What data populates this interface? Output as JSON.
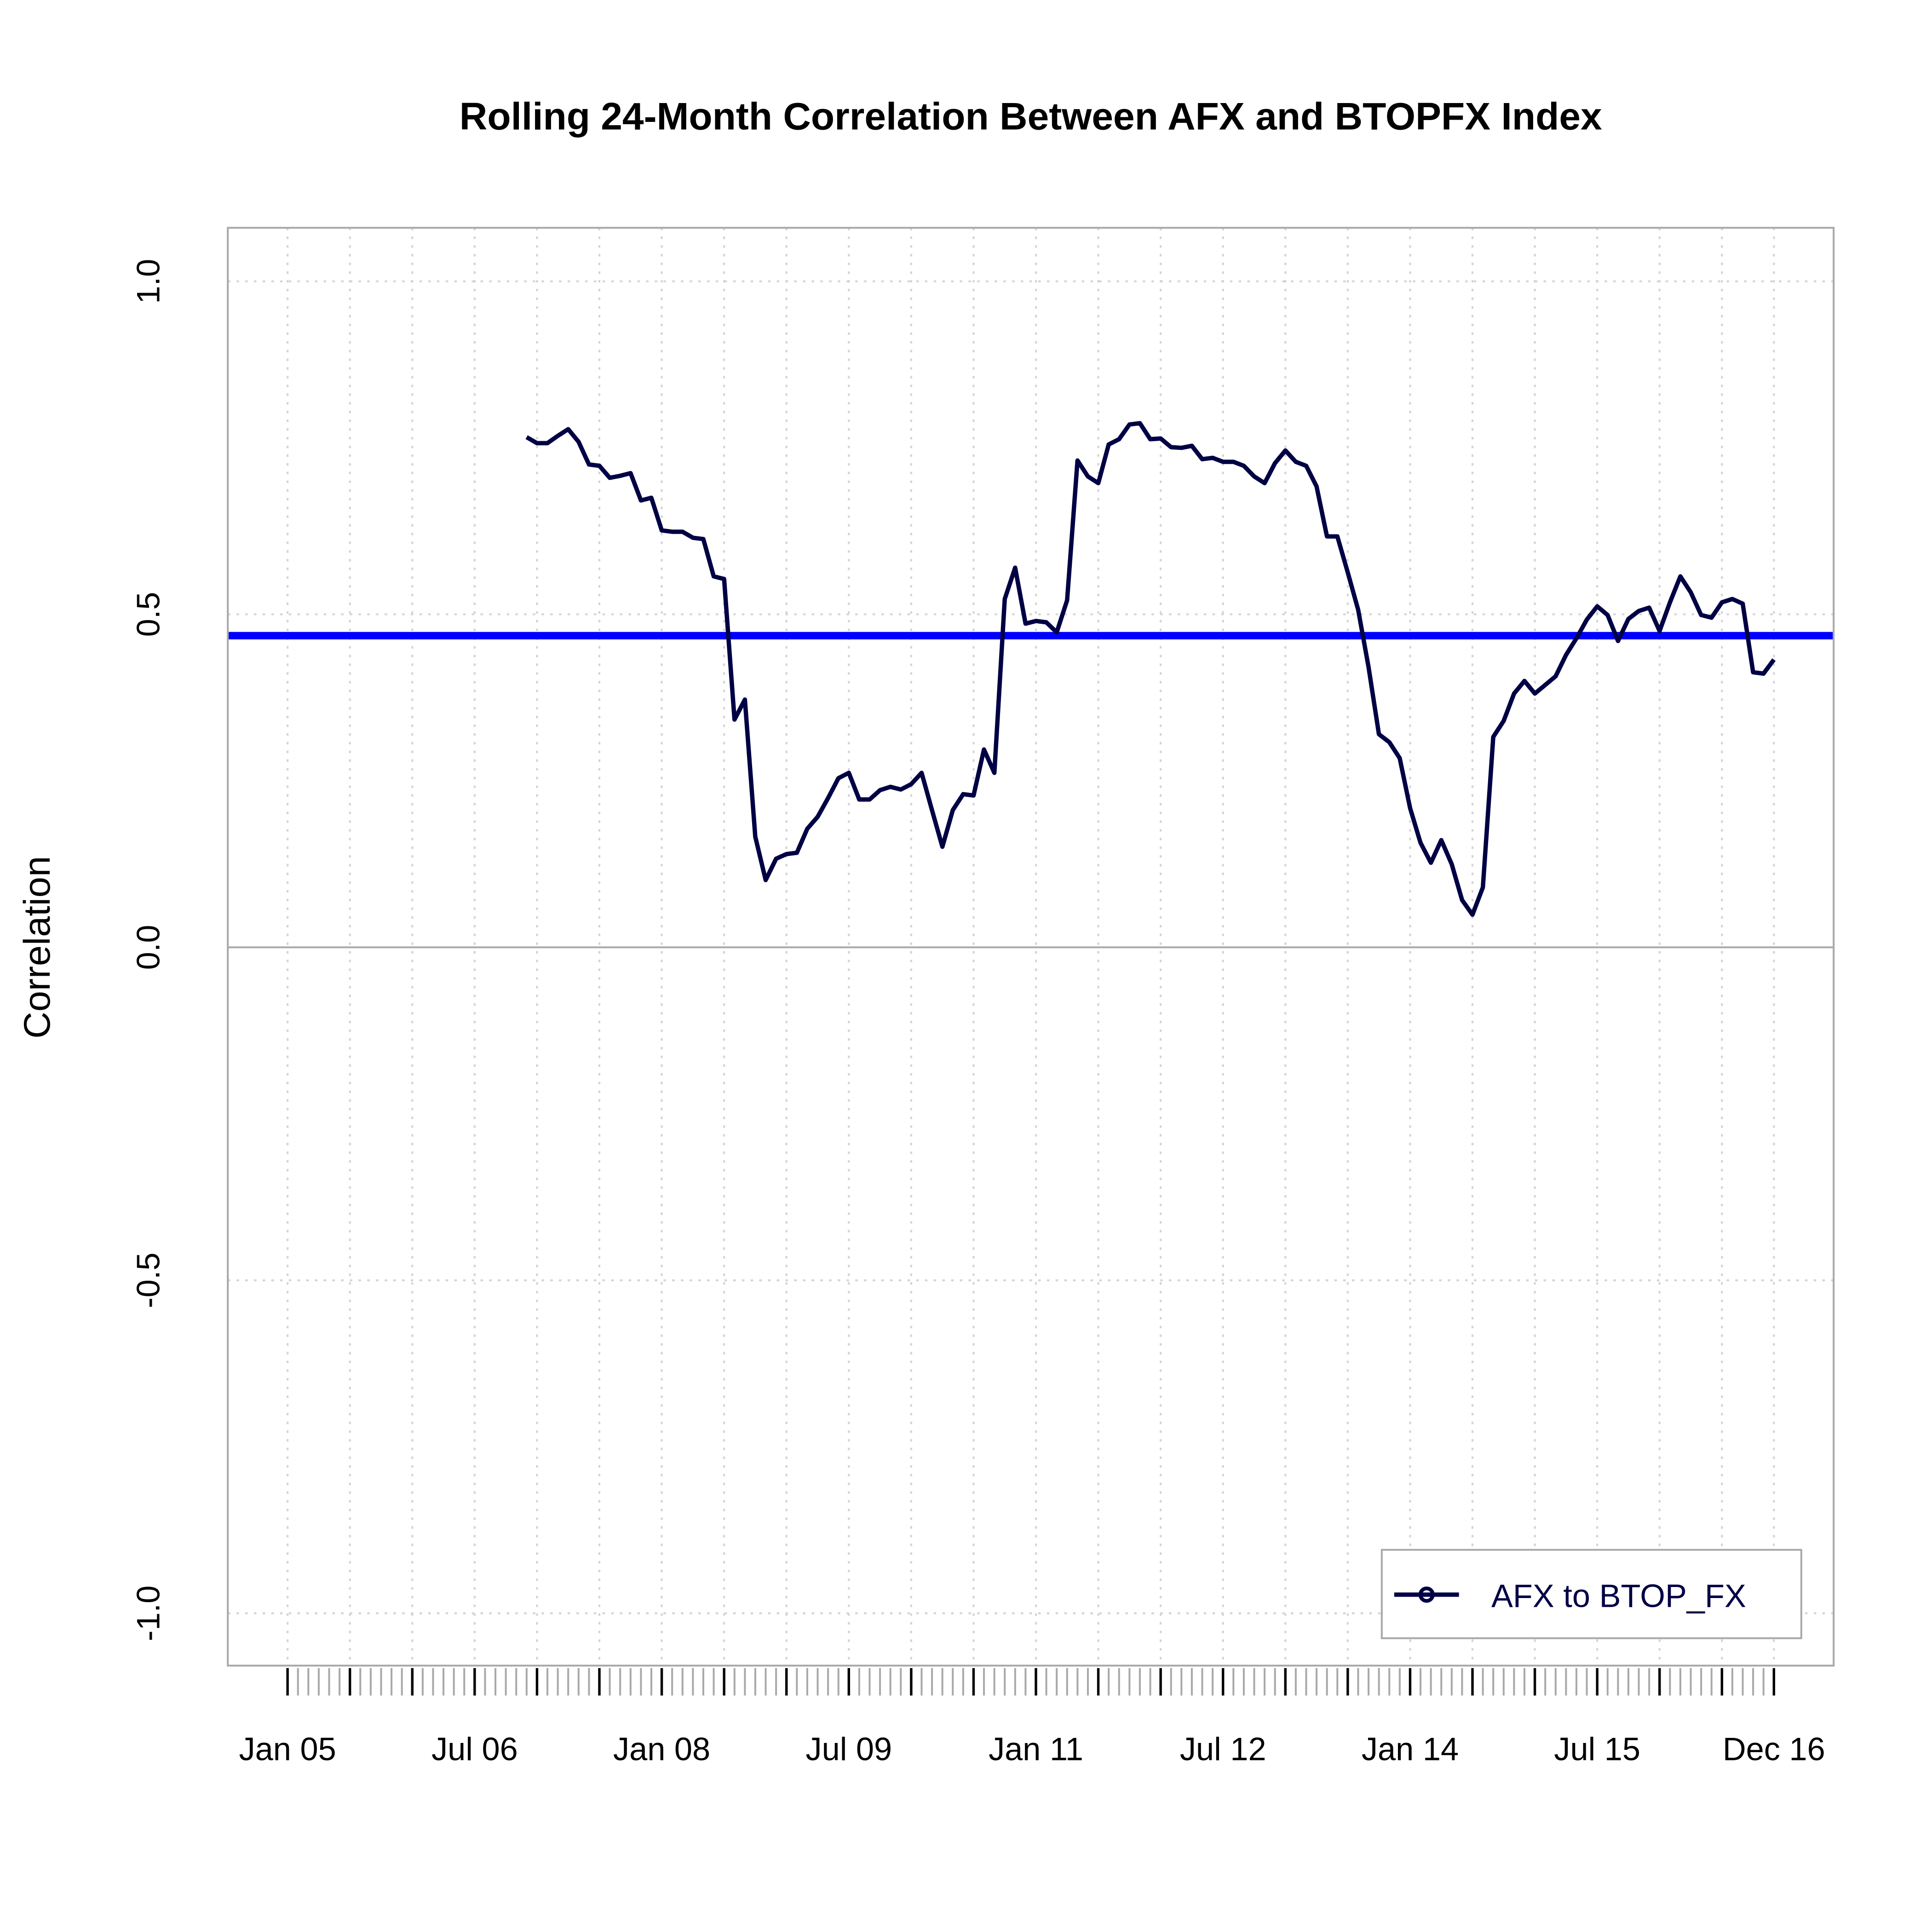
{
  "chart_data": {
    "type": "line",
    "title": "Rolling 24-Month Correlation Between AFX and BTOPFX Index",
    "xlabel": "",
    "ylabel": "Correlation",
    "x_start": "2006-12",
    "x_end": "2016-12",
    "frequency": "monthly",
    "xlim": [
      "2004-07",
      "2017-05"
    ],
    "ylim": [
      -1.08,
      1.08
    ],
    "y_ticks": [
      -1.0,
      -0.5,
      0.0,
      0.5,
      1.0
    ],
    "y_tick_labels": [
      "-1.0",
      "-0.5",
      "0.0",
      "0.5",
      "1.0"
    ],
    "x_ticks": [
      "2005-01",
      "2006-07",
      "2008-01",
      "2009-07",
      "2011-01",
      "2012-07",
      "2014-01",
      "2015-07",
      "2016-12"
    ],
    "x_tick_labels": [
      "Jan 05",
      "Jul 06",
      "Jan 08",
      "Jul 09",
      "Jan 11",
      "Jul 12",
      "Jan 14",
      "Jul 15",
      "Dec 16"
    ],
    "grid": true,
    "reference_line": {
      "value": 0.468,
      "color": "#0000ff"
    },
    "zero_line": 0.0,
    "legend": {
      "position": "bottom-right"
    },
    "series": [
      {
        "name": "AFX to BTOP_FX",
        "color": "#000044",
        "values": [
          0.766,
          0.757,
          0.757,
          0.768,
          0.778,
          0.759,
          0.725,
          0.723,
          0.705,
          0.708,
          0.712,
          0.671,
          0.675,
          0.626,
          0.624,
          0.624,
          0.615,
          0.613,
          0.557,
          0.553,
          0.342,
          0.372,
          0.166,
          0.101,
          0.133,
          0.14,
          0.142,
          0.178,
          0.196,
          0.224,
          0.254,
          0.262,
          0.222,
          0.222,
          0.236,
          0.241,
          0.237,
          0.245,
          0.262,
          0.206,
          0.151,
          0.206,
          0.23,
          0.228,
          0.297,
          0.262,
          0.523,
          0.57,
          0.486,
          0.49,
          0.488,
          0.473,
          0.521,
          0.731,
          0.707,
          0.697,
          0.755,
          0.763,
          0.785,
          0.787,
          0.763,
          0.764,
          0.751,
          0.75,
          0.753,
          0.733,
          0.735,
          0.729,
          0.729,
          0.723,
          0.707,
          0.697,
          0.727,
          0.746,
          0.729,
          0.723,
          0.692,
          0.617,
          0.617,
          0.563,
          0.507,
          0.421,
          0.32,
          0.308,
          0.284,
          0.209,
          0.157,
          0.127,
          0.161,
          0.125,
          0.071,
          0.049,
          0.09,
          0.316,
          0.34,
          0.381,
          0.4,
          0.381,
          0.394,
          0.407,
          0.439,
          0.464,
          0.492,
          0.512,
          0.499,
          0.46,
          0.493,
          0.505,
          0.51,
          0.475,
          0.518,
          0.557,
          0.533,
          0.499,
          0.495,
          0.518,
          0.523,
          0.516,
          0.413,
          0.411,
          0.432
        ]
      }
    ]
  }
}
